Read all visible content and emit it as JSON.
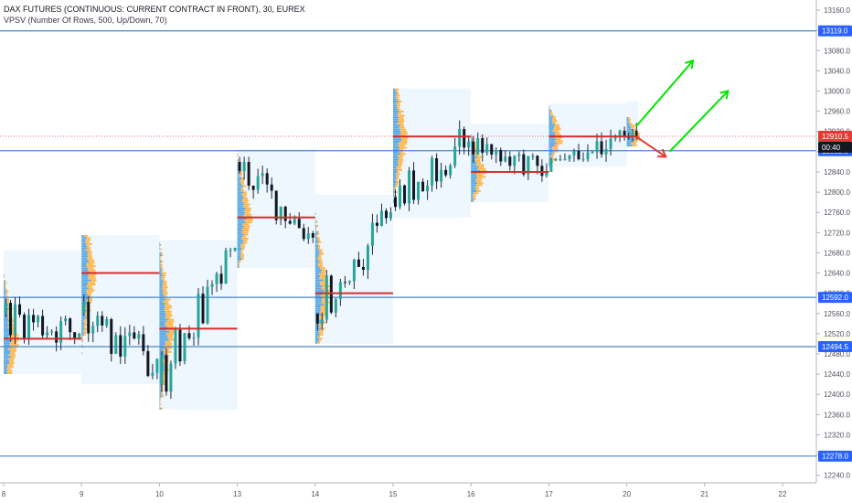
{
  "header": {
    "title": "DAX FUTURES (CONTINUOUS: CURRENT CONTRACT IN FRONT), 30, EUREX",
    "indicator": "VPSV (Number Of Rows, 500, Up/Down, 70)"
  },
  "colors": {
    "up": "#26a69a",
    "down": "#131722",
    "candle": "#1f2a44",
    "level_line": "#4a86c8",
    "level_tag": "#2962ff",
    "price_tag": "#e53935",
    "time_tag": "#131722",
    "profile_bg": "#e3f2fd",
    "volume_up": "#5aa9e6",
    "volume_down": "#ffb74d",
    "poc": "#d32f2f",
    "arrow_up": "#00e600",
    "arrow_down": "#e53935"
  },
  "chart_data": {
    "type": "candlestick",
    "x_ticks": [
      "8",
      "9",
      "10",
      "13",
      "14",
      "15",
      "16",
      "17",
      "20",
      "21",
      "22"
    ],
    "y_ticks": [
      13160,
      13120,
      13080,
      13040,
      13000,
      12960,
      12920,
      12880,
      12840,
      12800,
      12760,
      12720,
      12680,
      12640,
      12600,
      12560,
      12520,
      12480,
      12440,
      12400,
      12360,
      12320,
      12280,
      12240
    ],
    "ylim": [
      12225,
      13180
    ],
    "horizontal_levels": [
      {
        "value": 13119.0,
        "label": "13119.0"
      },
      {
        "value": 12882.0,
        "label": "12882.0"
      },
      {
        "value": 12592.0,
        "label": "12592.0"
      },
      {
        "value": 12494.5,
        "label": "12494.5"
      },
      {
        "value": 12278.0,
        "label": "12278.0"
      }
    ],
    "last_price": {
      "value": 12910.5,
      "label": "12910.5",
      "countdown": "00:40"
    },
    "sessions": [
      {
        "day": "8",
        "start": 0.0,
        "end": 1.0,
        "high": 12670,
        "low": 12450,
        "poc": 12510,
        "open": 12560,
        "close": 12520
      },
      {
        "day": "9",
        "start": 1.0,
        "end": 2.0,
        "high": 12700,
        "low": 12430,
        "poc": 12640,
        "open": 12560,
        "close": 12470
      },
      {
        "day": "10",
        "start": 2.0,
        "end": 3.0,
        "high": 12690,
        "low": 12380,
        "poc": 12530,
        "open": 12420,
        "close": 12690
      },
      {
        "day": "13",
        "start": 3.0,
        "end": 4.0,
        "high": 12870,
        "low": 12660,
        "poc": 12750,
        "open": 12860,
        "close": 12710
      },
      {
        "day": "14",
        "start": 4.0,
        "end": 5.0,
        "high": 12780,
        "low": 12510,
        "poc": 12600,
        "open": 12560,
        "close": 12760
      },
      {
        "day": "15",
        "start": 5.0,
        "end": 6.0,
        "high": 12990,
        "low": 12760,
        "poc": 12910,
        "open": 12790,
        "close": 12900
      },
      {
        "day": "16",
        "start": 6.0,
        "end": 7.0,
        "high": 12920,
        "low": 12790,
        "poc": 12840,
        "open": 12900,
        "close": 12840
      },
      {
        "day": "17",
        "start": 7.0,
        "end": 8.0,
        "high": 12960,
        "low": 12860,
        "poc": 12910,
        "open": 12840,
        "close": 12910
      },
      {
        "day": "20",
        "start": 8.0,
        "end": 8.15,
        "high": 12965,
        "low": 12900,
        "poc": 12910,
        "open": 12910,
        "close": 12910
      }
    ],
    "projections": [
      {
        "direction": "up",
        "from": [
          8.12,
          12930
        ],
        "to": [
          8.85,
          13060
        ]
      },
      {
        "direction": "down",
        "from": [
          8.12,
          12910
        ],
        "to": [
          8.5,
          12870
        ]
      },
      {
        "direction": "up",
        "from": [
          8.55,
          12880
        ],
        "to": [
          9.3,
          13000
        ]
      }
    ]
  }
}
